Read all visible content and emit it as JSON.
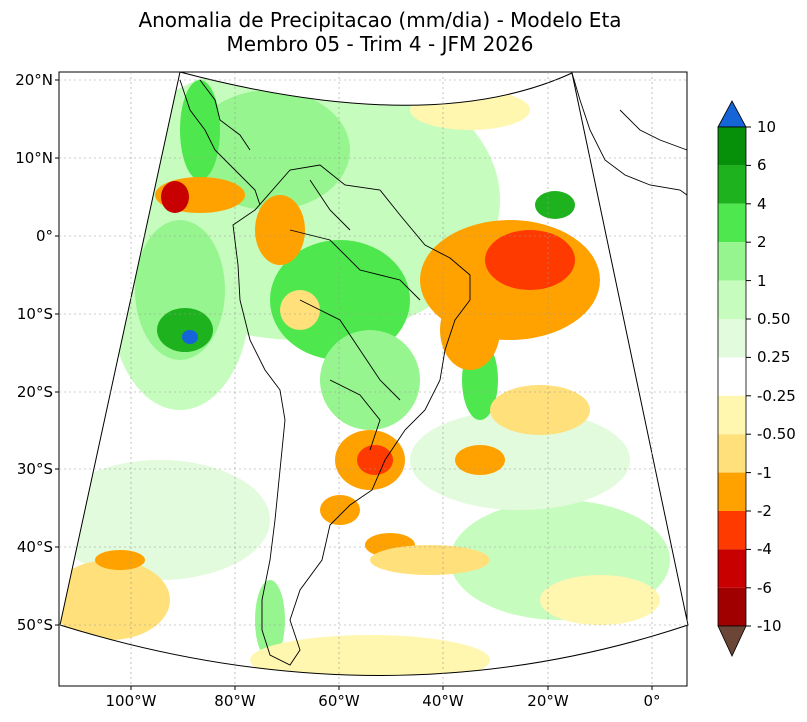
{
  "title": {
    "line1": "Anomalia de Precipitacao (mm/dia) - Modelo Eta",
    "line2": "Membro 05 - Trim 4 - JFM 2026"
  },
  "axes": {
    "lat_labels": [
      "20°N",
      "10°N",
      "0°",
      "10°S",
      "20°S",
      "30°S",
      "40°S",
      "50°S"
    ],
    "lon_labels": [
      "100°W",
      "80°W",
      "60°W",
      "40°W",
      "20°W",
      "0°"
    ]
  },
  "colorbar": {
    "labels": [
      "10",
      "6",
      "4",
      "2",
      "1",
      "0.50",
      "0.25",
      "-0.25",
      "-0.50",
      "-1",
      "-2",
      "-4",
      "-6",
      "-10"
    ],
    "colors": {
      "over": "#1565d8",
      "under": "#6b4636",
      "bands": [
        "#06900a",
        "#1fb21f",
        "#4ee84e",
        "#96f58e",
        "#c7fcbf",
        "#e2fbdc",
        "#ffffff",
        "#fff6b0",
        "#ffe07a",
        "#ffa200",
        "#ff3a00",
        "#c80000",
        "#a00000"
      ]
    }
  }
}
